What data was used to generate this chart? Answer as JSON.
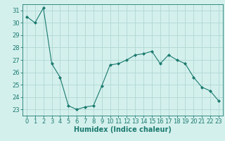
{
  "x": [
    0,
    1,
    2,
    3,
    4,
    5,
    6,
    7,
    8,
    9,
    10,
    11,
    12,
    13,
    14,
    15,
    16,
    17,
    18,
    19,
    20,
    21,
    22,
    23
  ],
  "y": [
    30.5,
    30.0,
    31.2,
    26.7,
    25.6,
    23.3,
    23.0,
    23.2,
    23.3,
    24.9,
    26.6,
    26.7,
    27.0,
    27.4,
    27.5,
    27.7,
    26.7,
    27.4,
    27.0,
    26.7,
    25.6,
    24.8,
    24.5,
    23.7
  ],
  "line_color": "#1a7a6e",
  "marker": "D",
  "marker_size": 2.0,
  "bg_color": "#d4f0ed",
  "grid_color": "#b0d8d4",
  "xlabel": "Humidex (Indice chaleur)",
  "ylabel": "",
  "ylim": [
    22.5,
    31.5
  ],
  "xlim": [
    -0.5,
    23.5
  ],
  "yticks": [
    23,
    24,
    25,
    26,
    27,
    28,
    29,
    30,
    31
  ],
  "xticks": [
    0,
    1,
    2,
    3,
    4,
    5,
    6,
    7,
    8,
    9,
    10,
    11,
    12,
    13,
    14,
    15,
    16,
    17,
    18,
    19,
    20,
    21,
    22,
    23
  ],
  "label_color": "#1a7a6e",
  "tick_color": "#1a7a6e",
  "font_size_xlabel": 7,
  "font_size_ticks": 6
}
